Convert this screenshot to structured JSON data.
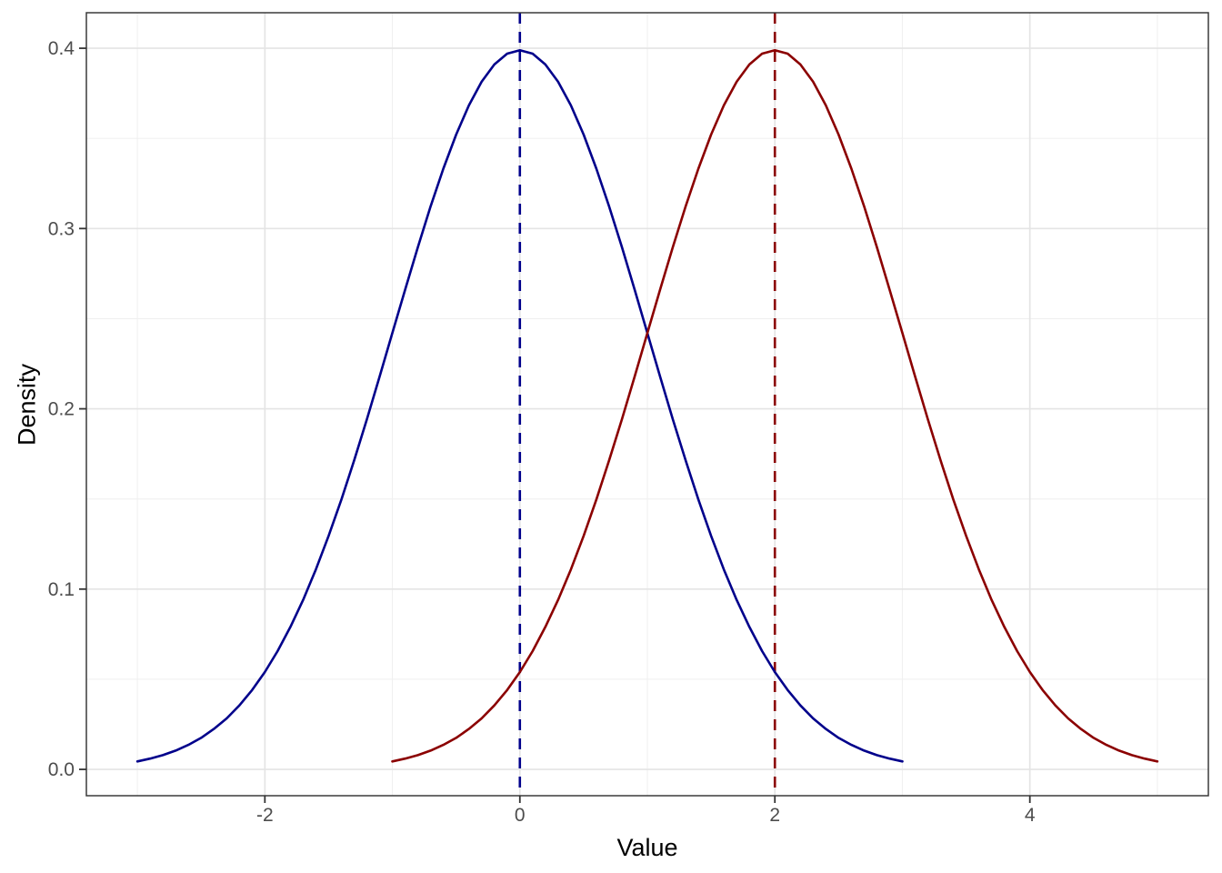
{
  "chart_data": {
    "type": "line",
    "title": "",
    "xlabel": "Value",
    "ylabel": "Density",
    "xlim": [
      -3.4,
      5.4
    ],
    "ylim": [
      -0.0146,
      0.4197
    ],
    "grid": true,
    "legend": "none",
    "x_major_ticks": [
      -2,
      0,
      2,
      4
    ],
    "x_tick_labels": [
      "-2",
      "0",
      "2",
      "4"
    ],
    "x_minor_ticks": [
      -3,
      -1,
      1,
      3,
      5
    ],
    "y_major_ticks": [
      0,
      0.1,
      0.2,
      0.3,
      0.4
    ],
    "y_tick_labels": [
      "0.0",
      "0.1",
      "0.2",
      "0.3",
      "0.4"
    ],
    "y_minor_ticks": [
      0.05,
      0.15,
      0.25,
      0.35
    ],
    "series": [
      {
        "name": "normal-density-mean-0-sd-1",
        "color": "#00008B",
        "mean": 0,
        "sd": 1,
        "peak": 0.3989,
        "x_start": -3.0,
        "x_step": 0.1,
        "values": [
          0.0044,
          0.006,
          0.0079,
          0.0104,
          0.0136,
          0.0175,
          0.0224,
          0.0283,
          0.0355,
          0.044,
          0.054,
          0.0656,
          0.079,
          0.094,
          0.1109,
          0.1295,
          0.1497,
          0.1714,
          0.1942,
          0.2179,
          0.242,
          0.2661,
          0.2897,
          0.3123,
          0.3332,
          0.3521,
          0.3683,
          0.3814,
          0.391,
          0.397,
          0.3989,
          0.397,
          0.391,
          0.3814,
          0.3683,
          0.3521,
          0.3332,
          0.3123,
          0.2897,
          0.2661,
          0.242,
          0.2179,
          0.1942,
          0.1714,
          0.1497,
          0.1295,
          0.1109,
          0.094,
          0.079,
          0.0656,
          0.054,
          0.044,
          0.0355,
          0.0283,
          0.0224,
          0.0175,
          0.0136,
          0.0104,
          0.0079,
          0.006,
          0.0044
        ]
      },
      {
        "name": "normal-density-mean-2-sd-1",
        "color": "#8B0000",
        "mean": 2,
        "sd": 1,
        "peak": 0.3989,
        "x_start": -1.0,
        "x_step": 0.1,
        "values": [
          0.0044,
          0.006,
          0.0079,
          0.0104,
          0.0136,
          0.0175,
          0.0224,
          0.0283,
          0.0355,
          0.044,
          0.054,
          0.0656,
          0.079,
          0.094,
          0.1109,
          0.1295,
          0.1497,
          0.1714,
          0.1942,
          0.2179,
          0.242,
          0.2661,
          0.2897,
          0.3123,
          0.3332,
          0.3521,
          0.3683,
          0.3814,
          0.391,
          0.397,
          0.3989,
          0.397,
          0.391,
          0.3814,
          0.3683,
          0.3521,
          0.3332,
          0.3123,
          0.2897,
          0.2661,
          0.242,
          0.2179,
          0.1942,
          0.1714,
          0.1497,
          0.1295,
          0.1109,
          0.094,
          0.079,
          0.0656,
          0.054,
          0.044,
          0.0355,
          0.0283,
          0.0224,
          0.0175,
          0.0136,
          0.0104,
          0.0079,
          0.006,
          0.0044
        ]
      }
    ],
    "vlines": [
      {
        "x": 0,
        "color": "#00008B",
        "style": "dashed"
      },
      {
        "x": 2,
        "color": "#8B0000",
        "style": "dashed"
      }
    ],
    "style": {
      "background": "#FFFFFF",
      "panel_background": "#FFFFFF",
      "panel_border": "#3A3A3A",
      "grid_major": "#E4E4E4",
      "grid_minor": "#F0F0F0",
      "tick_color": "#333333",
      "tick_label_color": "#4D4D4D",
      "axis_title_color": "#000000"
    }
  }
}
